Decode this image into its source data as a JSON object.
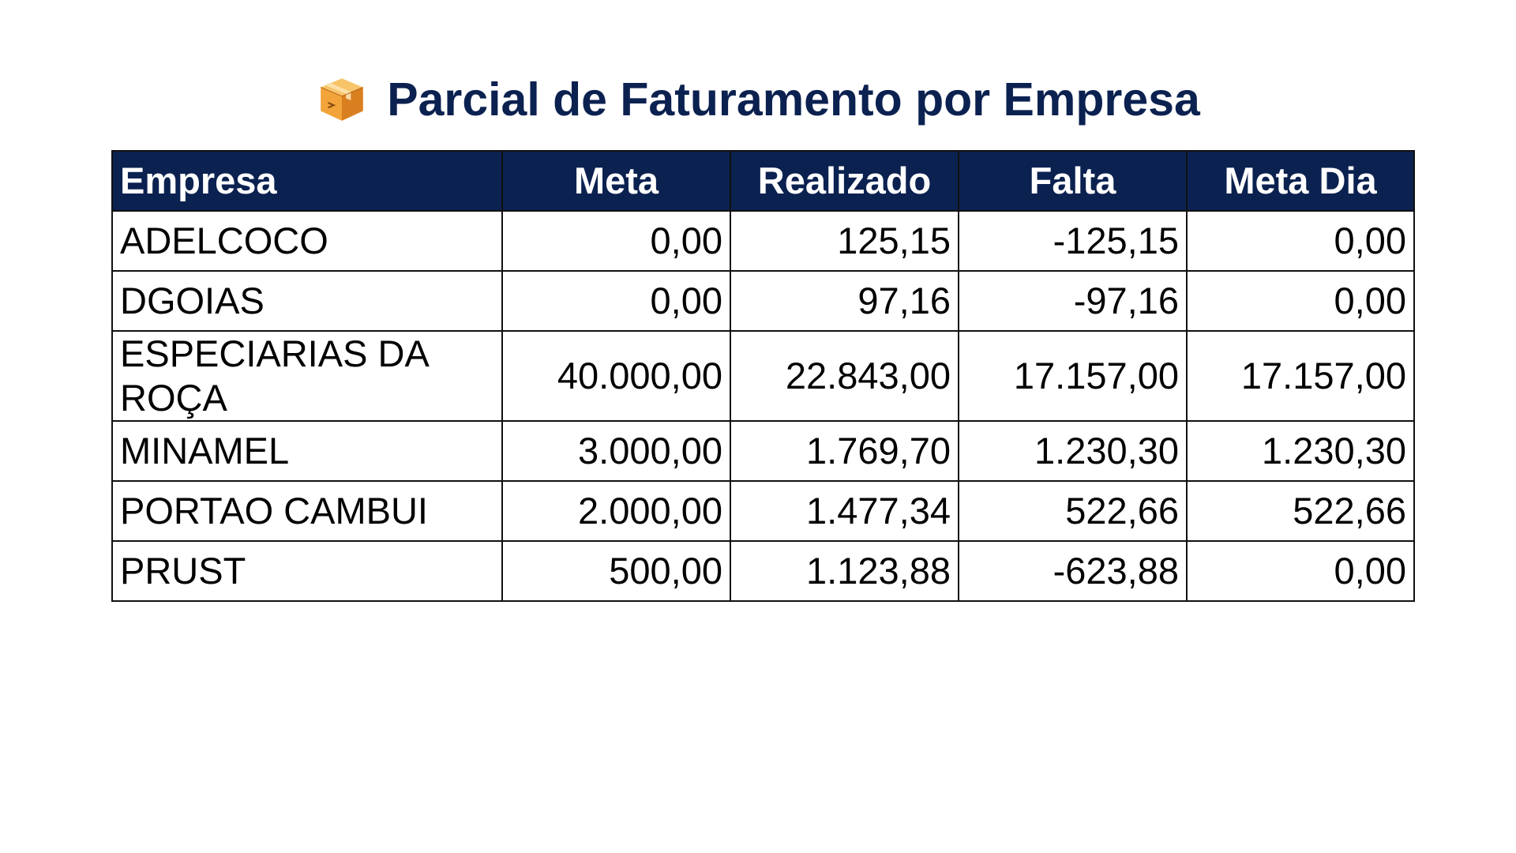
{
  "title": {
    "icon": "package-box-icon",
    "text": "Parcial de Faturamento por Empresa"
  },
  "colors": {
    "header_bg": "#0b2150",
    "header_text": "#ffffff",
    "title_text": "#0b2150",
    "border": "#111111"
  },
  "table": {
    "headers": [
      "Empresa",
      "Meta",
      "Realizado",
      "Falta",
      "Meta Dia"
    ],
    "rows": [
      {
        "empresa": "ADELCOCO",
        "meta": "0,00",
        "realizado": "125,15",
        "falta": "-125,15",
        "meta_dia": "0,00"
      },
      {
        "empresa": "DGOIAS",
        "meta": "0,00",
        "realizado": "97,16",
        "falta": "-97,16",
        "meta_dia": "0,00"
      },
      {
        "empresa": "ESPECIARIAS DA ROÇA",
        "meta": "40.000,00",
        "realizado": "22.843,00",
        "falta": "17.157,00",
        "meta_dia": "17.157,00"
      },
      {
        "empresa": "MINAMEL",
        "meta": "3.000,00",
        "realizado": "1.769,70",
        "falta": "1.230,30",
        "meta_dia": "1.230,30"
      },
      {
        "empresa": "PORTAO CAMBUI",
        "meta": "2.000,00",
        "realizado": "1.477,34",
        "falta": "522,66",
        "meta_dia": "522,66"
      },
      {
        "empresa": "PRUST",
        "meta": "500,00",
        "realizado": "1.123,88",
        "falta": "-623,88",
        "meta_dia": "0,00"
      }
    ]
  }
}
